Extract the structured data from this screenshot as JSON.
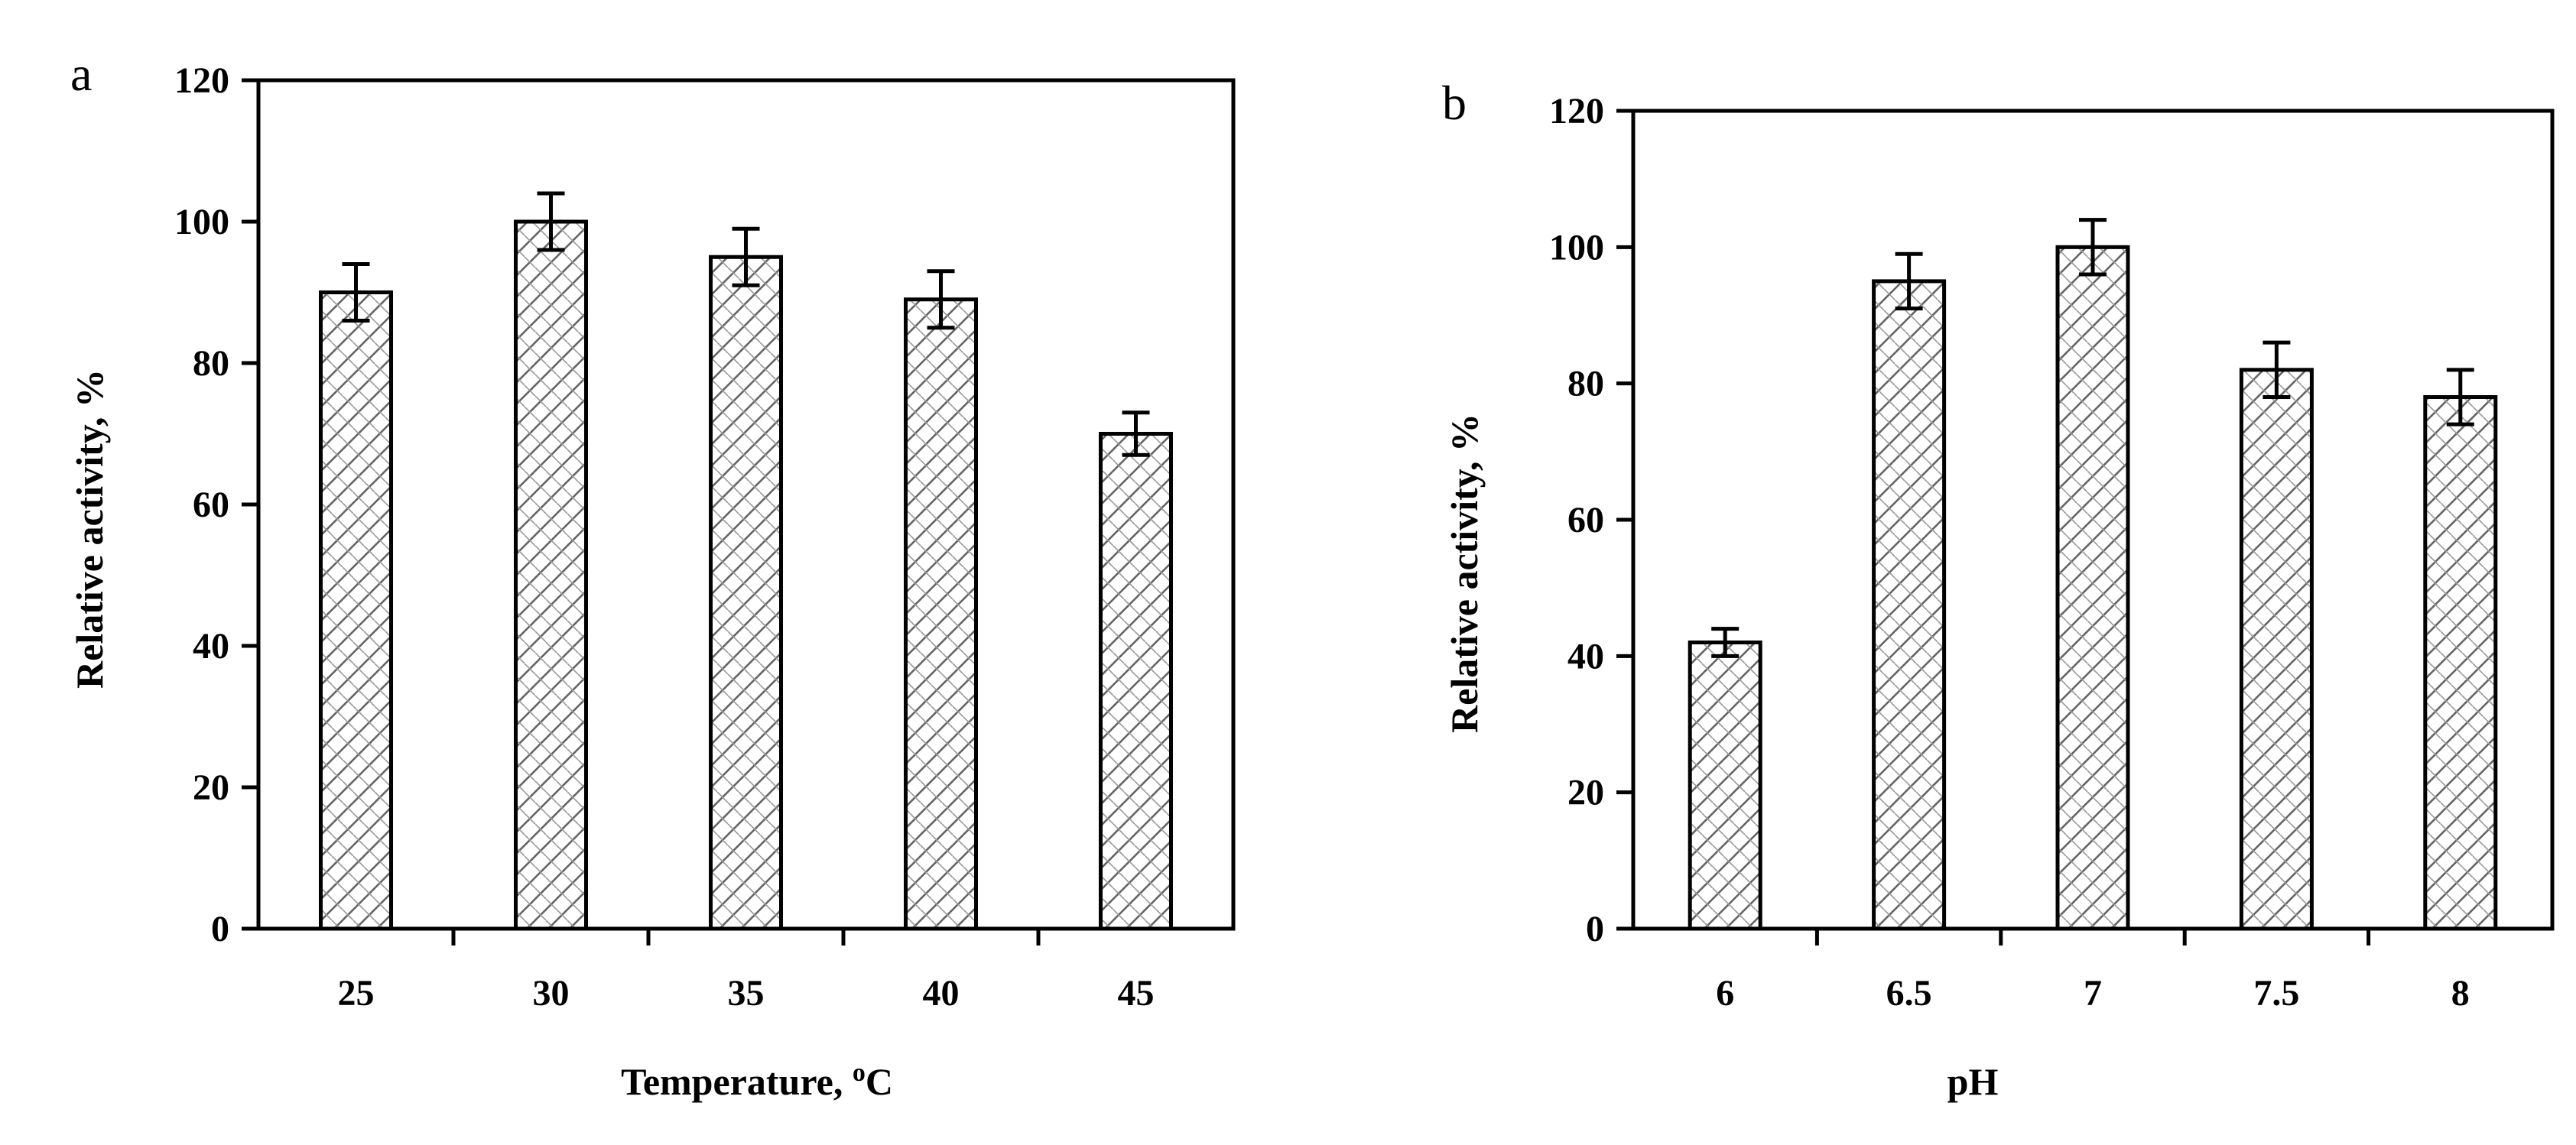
{
  "chart_data": [
    {
      "panel_label": "a",
      "type": "bar",
      "categories": [
        "25",
        "30",
        "35",
        "40",
        "45"
      ],
      "values": [
        90,
        100,
        95,
        89,
        70
      ],
      "errors": [
        4,
        4,
        4,
        4,
        3
      ],
      "xlabel": "Temperature, ",
      "xlabel_super": "o",
      "xlabel_unit": "C",
      "ylabel": "Relative activity,  %",
      "ylim": [
        0,
        120
      ],
      "yticks": [
        "0",
        "20",
        "40",
        "60",
        "80",
        "100",
        "120"
      ],
      "bar_fill": "diagonal-crosshatch",
      "grid": false,
      "legend": "none"
    },
    {
      "panel_label": "b",
      "type": "bar",
      "categories": [
        "6",
        "6.5",
        "7",
        "7.5",
        "8"
      ],
      "values": [
        42,
        95,
        100,
        82,
        78
      ],
      "errors": [
        2,
        4,
        4,
        4,
        4
      ],
      "xlabel": "pH",
      "ylabel": "Relative activity,  %",
      "ylim": [
        0,
        120
      ],
      "yticks": [
        "0",
        "20",
        "40",
        "60",
        "80",
        "100",
        "120"
      ],
      "bar_fill": "diagonal-crosshatch",
      "grid": false,
      "legend": "none"
    }
  ],
  "colors": {
    "axis": "#000000",
    "bar_stroke": "#000000",
    "hatch": "#555555",
    "background": "#ffffff"
  }
}
